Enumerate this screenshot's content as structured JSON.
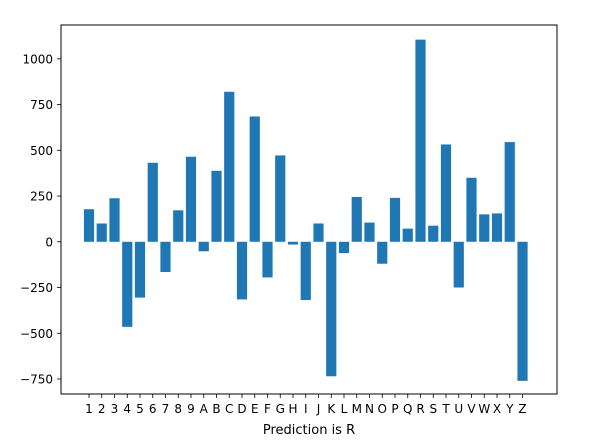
{
  "chart_data": {
    "type": "bar",
    "title": "",
    "xlabel": "Prediction is R",
    "ylabel": "",
    "categories": [
      "1",
      "2",
      "3",
      "4",
      "5",
      "6",
      "7",
      "8",
      "9",
      "A",
      "B",
      "C",
      "D",
      "E",
      "F",
      "G",
      "H",
      "I",
      "J",
      "K",
      "L",
      "M",
      "N",
      "O",
      "P",
      "Q",
      "R",
      "S",
      "T",
      "U",
      "V",
      "W",
      "X",
      "Y",
      "Z"
    ],
    "values": [
      178,
      100,
      238,
      -465,
      -305,
      432,
      -165,
      172,
      465,
      -52,
      388,
      820,
      -315,
      685,
      -195,
      472,
      -15,
      -318,
      100,
      -735,
      -62,
      245,
      105,
      -120,
      240,
      72,
      1105,
      88,
      532,
      -250,
      350,
      150,
      155,
      545,
      -760
    ],
    "ylim": [
      -832,
      1185
    ],
    "yticks": [
      -750,
      -500,
      -250,
      0,
      250,
      500,
      750,
      1000
    ],
    "ytick_labels": [
      "−750",
      "−500",
      "−250",
      "0",
      "250",
      "500",
      "750",
      "1000"
    ],
    "bar_color": "#1f77b4",
    "grid": false,
    "legend": "none"
  }
}
